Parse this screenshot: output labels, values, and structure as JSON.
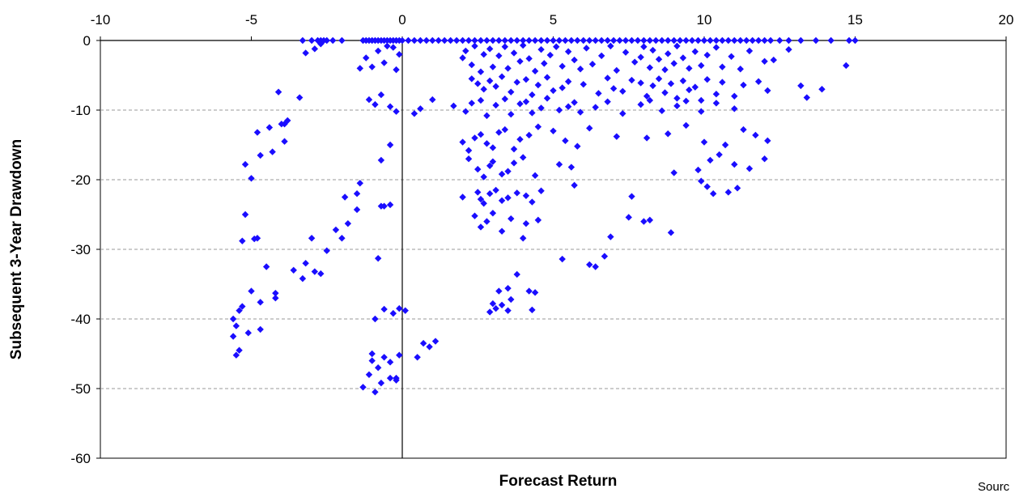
{
  "chart_data": {
    "type": "scatter",
    "title": "",
    "xlabel": "Forecast Return",
    "ylabel": "Subsequent 3-Year Drawdown",
    "xlim": [
      -10,
      20
    ],
    "ylim": [
      -60,
      0
    ],
    "x_ticks": [
      -10,
      -5,
      0,
      5,
      10,
      15,
      20
    ],
    "y_ticks": [
      0,
      -10,
      -20,
      -30,
      -40,
      -50,
      -60
    ],
    "x_tick_labels": [
      "-10",
      "-5",
      "0",
      "5",
      "10",
      "15",
      "20"
    ],
    "y_tick_labels": [
      "0",
      "-10",
      "-20",
      "-30",
      "-40",
      "-50",
      "-60"
    ],
    "grid": "horizontal dashed",
    "legend": "none",
    "marker": "diamond",
    "marker_color": "#1a0dff",
    "source_note": "Sourc",
    "series": [
      {
        "x": [
          -3.3,
          -3.0,
          -2.8,
          -2.7,
          -2.6,
          -2.5,
          -2.3,
          -2.0,
          -1.3,
          -1.2,
          -1.1,
          -1.0,
          -0.9,
          -0.8,
          -0.7,
          -0.6,
          -0.5,
          -0.4,
          -0.3,
          -0.2,
          -0.1,
          0.0,
          0.2,
          0.4,
          0.6,
          0.8,
          1.0,
          1.2,
          1.4,
          1.6,
          1.8,
          2.0,
          2.2,
          2.4,
          2.6,
          2.8,
          3.0,
          3.2,
          3.4,
          3.6,
          3.8,
          4.0,
          4.2,
          4.4,
          4.6,
          4.8,
          5.0,
          5.2,
          5.4,
          5.6,
          5.8,
          6.0,
          6.2,
          6.4,
          6.6,
          6.8,
          7.0,
          7.2,
          7.4,
          7.6,
          7.8,
          8.0,
          8.2,
          8.4,
          8.6,
          8.8,
          9.0,
          9.2,
          9.4,
          9.6,
          9.8,
          10.0,
          10.2,
          10.4,
          10.6,
          10.8,
          11.0,
          11.2,
          11.4,
          11.6,
          11.8,
          12.0,
          12.2,
          12.5,
          12.8,
          13.2,
          13.7,
          14.2,
          14.8,
          15.0,
          -3.2,
          -2.9,
          -2.7,
          -1.4,
          -1.2,
          -1.0,
          -0.8,
          -0.6,
          -0.5,
          -0.3,
          -0.2,
          -0.1,
          2.0,
          2.1,
          2.3,
          2.4,
          2.6,
          2.7,
          2.9,
          3.0,
          3.2,
          3.4,
          3.5,
          3.7,
          3.9,
          4.0,
          4.2,
          4.4,
          4.6,
          4.7,
          4.9,
          5.1,
          5.3,
          5.5,
          5.7,
          5.9,
          6.1,
          6.3,
          6.6,
          6.9,
          7.1,
          7.4,
          7.7,
          7.9,
          8.0,
          8.2,
          8.3,
          8.5,
          8.7,
          8.8,
          9.0,
          9.1,
          9.3,
          9.5,
          9.7,
          9.9,
          10.1,
          10.4,
          10.6,
          10.9,
          11.2,
          11.5,
          12.0,
          12.3,
          12.8,
          14.7,
          2.3,
          2.5,
          2.7,
          2.9,
          3.1,
          3.3,
          3.6,
          3.8,
          4.1,
          4.3,
          4.5,
          4.8,
          5.0,
          5.3,
          5.5,
          6.0,
          6.5,
          6.8,
          7.0,
          7.3,
          7.6,
          7.9,
          8.1,
          8.3,
          8.5,
          8.7,
          8.9,
          9.1,
          9.3,
          9.5,
          9.7,
          9.9,
          10.1,
          10.4,
          10.6,
          11.0,
          11.3,
          11.8,
          12.1,
          13.2,
          13.4,
          13.9,
          -3.4,
          -4.1,
          -3.9,
          -3.8,
          -1.1,
          -0.9,
          -0.7,
          -0.4,
          -0.2,
          0.4,
          0.6,
          1.0,
          1.7,
          2.1,
          2.3,
          2.6,
          2.8,
          3.1,
          3.4,
          3.6,
          3.9,
          4.1,
          4.3,
          4.6,
          4.8,
          5.2,
          5.5,
          5.7,
          5.9,
          6.4,
          6.8,
          7.3,
          7.9,
          8.2,
          8.6,
          9.1,
          9.4,
          9.9,
          10.4,
          11.0,
          -4.4,
          -4.8,
          -4.0,
          -3.9,
          -0.4,
          2.0,
          2.2,
          2.4,
          2.6,
          2.8,
          3.0,
          3.2,
          3.4,
          3.7,
          3.9,
          4.2,
          4.5,
          5.0,
          5.4,
          5.8,
          6.2,
          7.1,
          8.1,
          8.8,
          9.4,
          10.0,
          10.7,
          11.3,
          11.7,
          12.1,
          -5.2,
          -5.0,
          -4.7,
          -4.3,
          -1.4,
          -0.7,
          2.2,
          2.5,
          2.7,
          2.9,
          3.0,
          3.3,
          3.5,
          3.7,
          4.0,
          4.4,
          5.2,
          5.6,
          9.0,
          9.8,
          10.2,
          10.5,
          11.0,
          11.5,
          12.0,
          -1.5,
          -1.9,
          -0.6,
          -0.4,
          2.0,
          2.5,
          2.6,
          2.7,
          2.9,
          3.1,
          3.3,
          3.5,
          3.8,
          4.1,
          4.3,
          4.6,
          5.7,
          7.6,
          9.9,
          10.1,
          10.3,
          10.8,
          11.1,
          -5.2,
          -4.9,
          -2.2,
          -2.0,
          -1.8,
          -1.5,
          -0.7,
          2.4,
          2.6,
          2.8,
          3.0,
          3.3,
          3.6,
          4.1,
          4.5,
          6.9,
          7.5,
          8.0,
          8.2,
          8.9,
          -5.3,
          -4.8,
          -3.0,
          -2.5,
          -0.8,
          4.0,
          5.3,
          6.4,
          6.7,
          6.2,
          -3.6,
          -3.2,
          -2.7,
          -4.5,
          -5.0,
          -4.7,
          -4.2,
          -3.3,
          -2.9,
          3.0,
          3.2,
          3.5,
          3.6,
          3.8,
          4.2,
          4.4,
          -4.2,
          -5.3,
          -5.1,
          -5.6,
          -4.7,
          -0.9,
          -0.6,
          -0.3,
          -0.1,
          0.1,
          2.9,
          3.1,
          3.3,
          3.5,
          4.3,
          -5.6,
          -5.4,
          -5.5,
          -1.0,
          -0.8,
          -0.6,
          -0.4,
          -0.2,
          -0.1,
          0.9,
          1.1,
          -5.4,
          -5.5,
          -1.3,
          -1.1,
          -1.0,
          -0.9,
          -0.7,
          -0.4,
          -0.2,
          0.5,
          0.7
        ],
        "y": [
          0,
          0,
          0,
          0,
          0,
          0,
          0,
          0,
          0,
          0,
          0,
          0,
          0,
          0,
          0,
          0,
          0,
          0,
          0,
          0,
          0,
          0,
          0,
          0,
          0,
          0,
          0,
          0,
          0,
          0,
          0,
          0,
          0,
          0,
          0,
          0,
          0,
          0,
          0,
          0,
          0,
          0,
          0,
          0,
          0,
          0,
          0,
          0,
          0,
          0,
          0,
          0,
          0,
          0,
          0,
          0,
          0,
          0,
          0,
          0,
          0,
          0,
          0,
          0,
          0,
          0,
          0,
          0,
          0,
          0,
          0,
          0,
          0,
          0,
          0,
          0,
          0,
          0,
          0,
          0,
          0,
          0,
          0,
          0,
          0,
          0,
          0,
          0,
          0,
          0,
          -1.8,
          -1.2,
          -0.5,
          -4.0,
          -2.5,
          -3.8,
          -1.5,
          -3.2,
          -0.8,
          -1.0,
          -4.2,
          -2.0,
          -2.5,
          -1.5,
          -3.5,
          -0.8,
          -4.5,
          -2.0,
          -1.2,
          -3.8,
          -2.2,
          -0.9,
          -4.0,
          -1.8,
          -3.0,
          -0.7,
          -2.6,
          -4.4,
          -1.3,
          -3.3,
          -2.1,
          -0.9,
          -3.7,
          -1.6,
          -2.8,
          -4.1,
          -1.1,
          -3.4,
          -2.2,
          -0.8,
          -4.3,
          -1.7,
          -3.1,
          -2.4,
          -0.9,
          -3.9,
          -1.4,
          -2.7,
          -4.2,
          -1.9,
          -3.3,
          -0.8,
          -2.5,
          -4.0,
          -1.6,
          -3.6,
          -2.1,
          -1.0,
          -3.8,
          -2.3,
          -4.1,
          -1.5,
          -3.0,
          -2.8,
          -1.3,
          -3.6,
          -5.5,
          -6.2,
          -7.0,
          -5.8,
          -6.6,
          -5.2,
          -7.4,
          -6.0,
          -5.6,
          -7.8,
          -6.4,
          -5.3,
          -7.2,
          -6.8,
          -5.9,
          -6.3,
          -7.6,
          -5.4,
          -6.9,
          -7.3,
          -5.7,
          -6.1,
          -8.0,
          -6.5,
          -5.5,
          -7.5,
          -6.2,
          -8.3,
          -5.8,
          -7.1,
          -6.7,
          -8.6,
          -5.6,
          -7.7,
          -6.0,
          -8.0,
          -6.4,
          -5.9,
          -7.2,
          -6.5,
          -8.2,
          -7.0,
          -8.2,
          -7.4,
          -12.0,
          -11.5,
          -8.5,
          -9.2,
          -7.8,
          -9.5,
          -10.2,
          -10.5,
          -9.8,
          -8.5,
          -9.4,
          -10.2,
          -9.0,
          -8.6,
          -10.8,
          -9.3,
          -8.4,
          -10.6,
          -9.1,
          -8.8,
          -10.4,
          -9.7,
          -8.3,
          -10.0,
          -9.5,
          -8.9,
          -10.3,
          -9.6,
          -8.8,
          -10.5,
          -9.2,
          -8.6,
          -10.1,
          -9.4,
          -8.7,
          -10.2,
          -9.0,
          -9.8,
          -12.5,
          -13.2,
          -12.0,
          -14.5,
          -15.0,
          -14.6,
          -15.8,
          -14.0,
          -13.5,
          -14.8,
          -15.4,
          -13.2,
          -12.8,
          -15.6,
          -14.2,
          -13.6,
          -12.4,
          -13.0,
          -14.4,
          -15.2,
          -12.6,
          -13.8,
          -14.0,
          -13.4,
          -12.2,
          -14.6,
          -15.0,
          -12.8,
          -13.6,
          -14.4,
          -17.8,
          -19.8,
          -16.5,
          -16.0,
          -20.5,
          -17.2,
          -17.0,
          -18.5,
          -19.6,
          -18.0,
          -17.4,
          -19.2,
          -18.8,
          -17.6,
          -16.8,
          -19.4,
          -17.8,
          -18.2,
          -19.0,
          -18.6,
          -17.2,
          -16.4,
          -17.8,
          -18.4,
          -17.0,
          -22.0,
          -22.5,
          -23.8,
          -23.6,
          -22.5,
          -21.8,
          -22.8,
          -23.4,
          -22.0,
          -21.5,
          -23.0,
          -22.6,
          -21.9,
          -22.3,
          -23.2,
          -21.6,
          -20.8,
          -22.4,
          -20.2,
          -21.0,
          -22.0,
          -21.8,
          -21.2,
          -25.0,
          -28.5,
          -27.2,
          -28.4,
          -26.3,
          -24.3,
          -23.8,
          -25.2,
          -26.8,
          -26.0,
          -24.8,
          -27.4,
          -25.6,
          -26.3,
          -25.8,
          -28.2,
          -25.4,
          -26.0,
          -25.8,
          -27.6,
          -28.8,
          -28.4,
          -28.4,
          -30.2,
          -31.3,
          -28.4,
          -31.4,
          -32.5,
          -31.0,
          -32.2,
          -33.0,
          -32.0,
          -33.5,
          -32.5,
          -36.0,
          -37.6,
          -36.3,
          -34.2,
          -33.2,
          -37.8,
          -36.0,
          -35.6,
          -37.2,
          -33.6,
          -36.0,
          -36.2,
          -37.0,
          -38.2,
          -42.0,
          -42.5,
          -41.5,
          -40.0,
          -38.6,
          -39.2,
          -38.5,
          -38.8,
          -39.0,
          -38.5,
          -38.0,
          -38.8,
          -38.7,
          -40.0,
          -38.8,
          -41.0,
          -45.0,
          -47.0,
          -45.5,
          -48.5,
          -48.8,
          -45.2,
          -44.0,
          -43.2,
          -44.5,
          -45.2,
          -49.8,
          -48.0,
          -46.0,
          -50.5,
          -49.2,
          -46.2,
          -48.5,
          -45.5,
          -43.5
        ]
      }
    ]
  }
}
